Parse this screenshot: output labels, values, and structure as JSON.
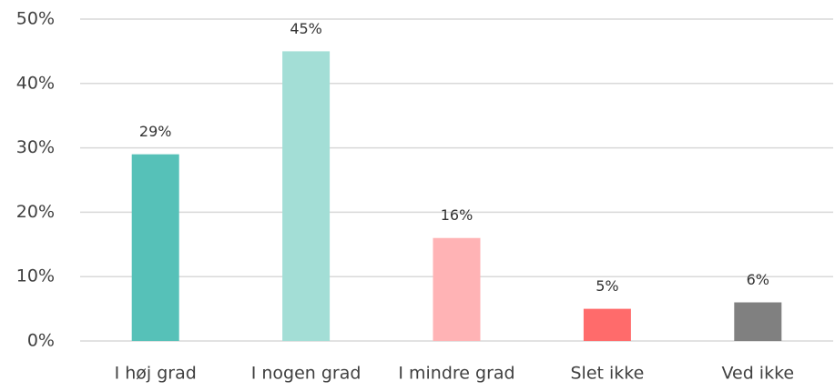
{
  "chart_data": {
    "type": "bar",
    "categories": [
      "I høj grad",
      "I nogen grad",
      "I mindre grad",
      "Slet ikke",
      "Ved ikke"
    ],
    "values": [
      29,
      45,
      16,
      5,
      6
    ],
    "value_labels": [
      "29%",
      "45%",
      "16%",
      "5%",
      "6%"
    ],
    "colors": [
      "#56c1b8",
      "#a3ded6",
      "#ffb3b5",
      "#ff6b6b",
      "#808080"
    ],
    "ylim": [
      0,
      50
    ],
    "yticks": [
      {
        "value": 0,
        "label": "0%"
      },
      {
        "value": 10,
        "label": "10%"
      },
      {
        "value": 20,
        "label": "20%"
      },
      {
        "value": 30,
        "label": "30%"
      },
      {
        "value": 40,
        "label": "40%"
      },
      {
        "value": 50,
        "label": "50%"
      }
    ],
    "grid": true
  }
}
